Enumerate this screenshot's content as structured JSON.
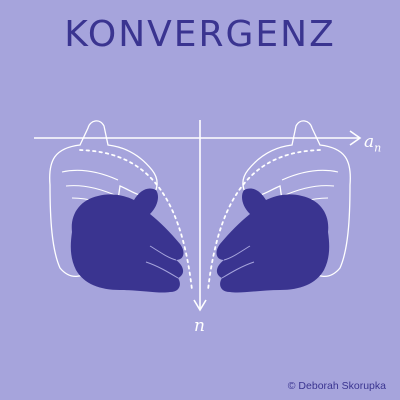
{
  "title": "KONVERGENZ",
  "axis": {
    "x_label": "a",
    "x_label_subscript": "n",
    "y_label": "n"
  },
  "credit": "© Deborah Skorupka",
  "colors": {
    "background": "#a6a4dc",
    "ink": "#3a3490",
    "hand_fill_dark": "#3a3490",
    "line": "#ffffff"
  }
}
